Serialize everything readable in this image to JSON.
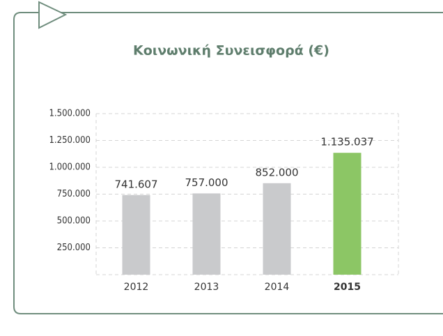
{
  "chart_data": {
    "type": "bar",
    "title": "Κοινωνική Συνεισφορά (€)",
    "categories": [
      "2012",
      "2013",
      "2014",
      "2015"
    ],
    "values": [
      741607,
      757000,
      852000,
      1135037
    ],
    "value_labels": [
      "741.607",
      "757.000",
      "852.000",
      "1.135.037"
    ],
    "colors": [
      "#c9cacc",
      "#c9cacc",
      "#c9cacc",
      "#8cc665"
    ],
    "ylim": [
      0,
      1500000
    ],
    "yticks": [
      {
        "value": 250000,
        "label": "250.000"
      },
      {
        "value": 500000,
        "label": "500.000"
      },
      {
        "value": 750000,
        "label": "750.000"
      },
      {
        "value": 1000000,
        "label": "1.000.000"
      },
      {
        "value": 1250000,
        "label": "1.250.000"
      },
      {
        "value": 1500000,
        "label": "1.500.000"
      }
    ],
    "grid": true
  }
}
